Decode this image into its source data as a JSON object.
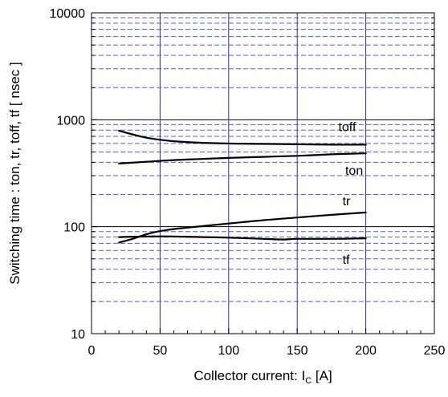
{
  "chart_data": {
    "type": "line",
    "xlabel": {
      "main": "Collector current: I",
      "sub": "C",
      "unit": " [A]"
    },
    "ylabel": "Switching time  :  ton, tr, toff, tf   [ nsec ]",
    "xlim": [
      0,
      250
    ],
    "ylim": [
      10,
      10000
    ],
    "yscale": "log",
    "x_ticks": [
      0,
      50,
      100,
      150,
      200,
      250
    ],
    "x_tick_labels": [
      "0",
      "50",
      "100",
      "150",
      "200",
      "250"
    ],
    "y_ticks": [
      10,
      100,
      1000,
      10000
    ],
    "y_tick_labels": [
      "10",
      "100",
      "1000",
      "10000"
    ],
    "grid": {
      "vertical_major_x": [
        50,
        100,
        150,
        200
      ],
      "horizontal_major_y": [
        100,
        1000
      ],
      "horizontal_minor_dashed": true,
      "color_vertical": "#2a2ad4",
      "color_minor": "#4f5fe0",
      "color_major": "#000000"
    },
    "series": [
      {
        "name": "toff",
        "x": [
          20,
          30,
          40,
          50,
          60,
          80,
          100,
          125,
          150,
          175,
          200
        ],
        "y": [
          790,
          730,
          680,
          650,
          630,
          610,
          600,
          595,
          590,
          585,
          585
        ]
      },
      {
        "name": "ton",
        "x": [
          20,
          40,
          60,
          80,
          100,
          125,
          150,
          175,
          200
        ],
        "y": [
          390,
          405,
          420,
          430,
          440,
          450,
          460,
          475,
          485
        ]
      },
      {
        "name": "tr",
        "x": [
          20,
          30,
          40,
          50,
          60,
          70,
          80,
          100,
          125,
          150,
          175,
          200
        ],
        "y": [
          71,
          77,
          85,
          91,
          95,
          98,
          101,
          107,
          115,
          122,
          129,
          136
        ]
      },
      {
        "name": "tf",
        "x": [
          20,
          40,
          60,
          80,
          100,
          125,
          140,
          150,
          175,
          200
        ],
        "y": [
          80,
          81,
          81,
          80,
          79,
          77,
          76,
          77,
          77,
          78
        ]
      }
    ],
    "annotations": [
      {
        "text": "toff",
        "x": 180,
        "y": 780
      },
      {
        "text": "ton",
        "x": 185,
        "y": 305
      },
      {
        "text": "tr",
        "x": 183,
        "y": 158
      },
      {
        "text": "tf",
        "x": 183,
        "y": 45
      }
    ]
  }
}
